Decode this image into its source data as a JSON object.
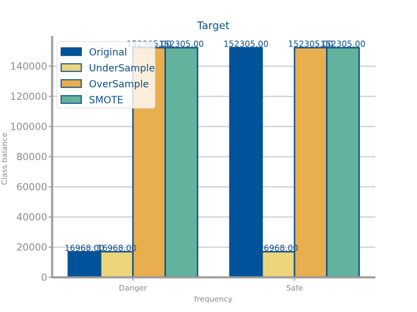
{
  "chart_data": {
    "type": "bar",
    "title": "Target",
    "xlabel": "frequency",
    "ylabel": "Class balance",
    "categories": [
      "Danger",
      "Safe"
    ],
    "series": [
      {
        "name": "Original",
        "values": [
          16968.0,
          152305.0
        ],
        "color": "#00529b"
      },
      {
        "name": "UnderSample",
        "values": [
          16968.0,
          16968.0
        ],
        "color": "#ecd57a"
      },
      {
        "name": "OverSample",
        "values": [
          152305.0,
          152305.0
        ],
        "color": "#e9ae4d"
      },
      {
        "name": "SMOTE",
        "values": [
          152305.0,
          152305.0
        ],
        "color": "#63b29d"
      }
    ],
    "value_labels": [
      [
        "16968.00",
        "152305.00"
      ],
      [
        "16968.00",
        "16968.00"
      ],
      [
        "152305.00",
        "152305.00"
      ],
      [
        "152305.00",
        "152305.00"
      ]
    ],
    "ylim": [
      0,
      160000
    ],
    "yticks": [
      0,
      20000,
      40000,
      60000,
      80000,
      100000,
      120000,
      140000
    ],
    "ytick_labels": [
      "0",
      "20000",
      "40000",
      "60000",
      "80000",
      "100000",
      "120000",
      "140000"
    ],
    "grid": true,
    "legend_position": "top-left",
    "colors": {
      "title": "#0b4f8a",
      "edge": "#0b4f8a",
      "axis": "#9a9a9a",
      "grid": "#c8c8c8",
      "tick_text": "#8a8a8a"
    }
  }
}
